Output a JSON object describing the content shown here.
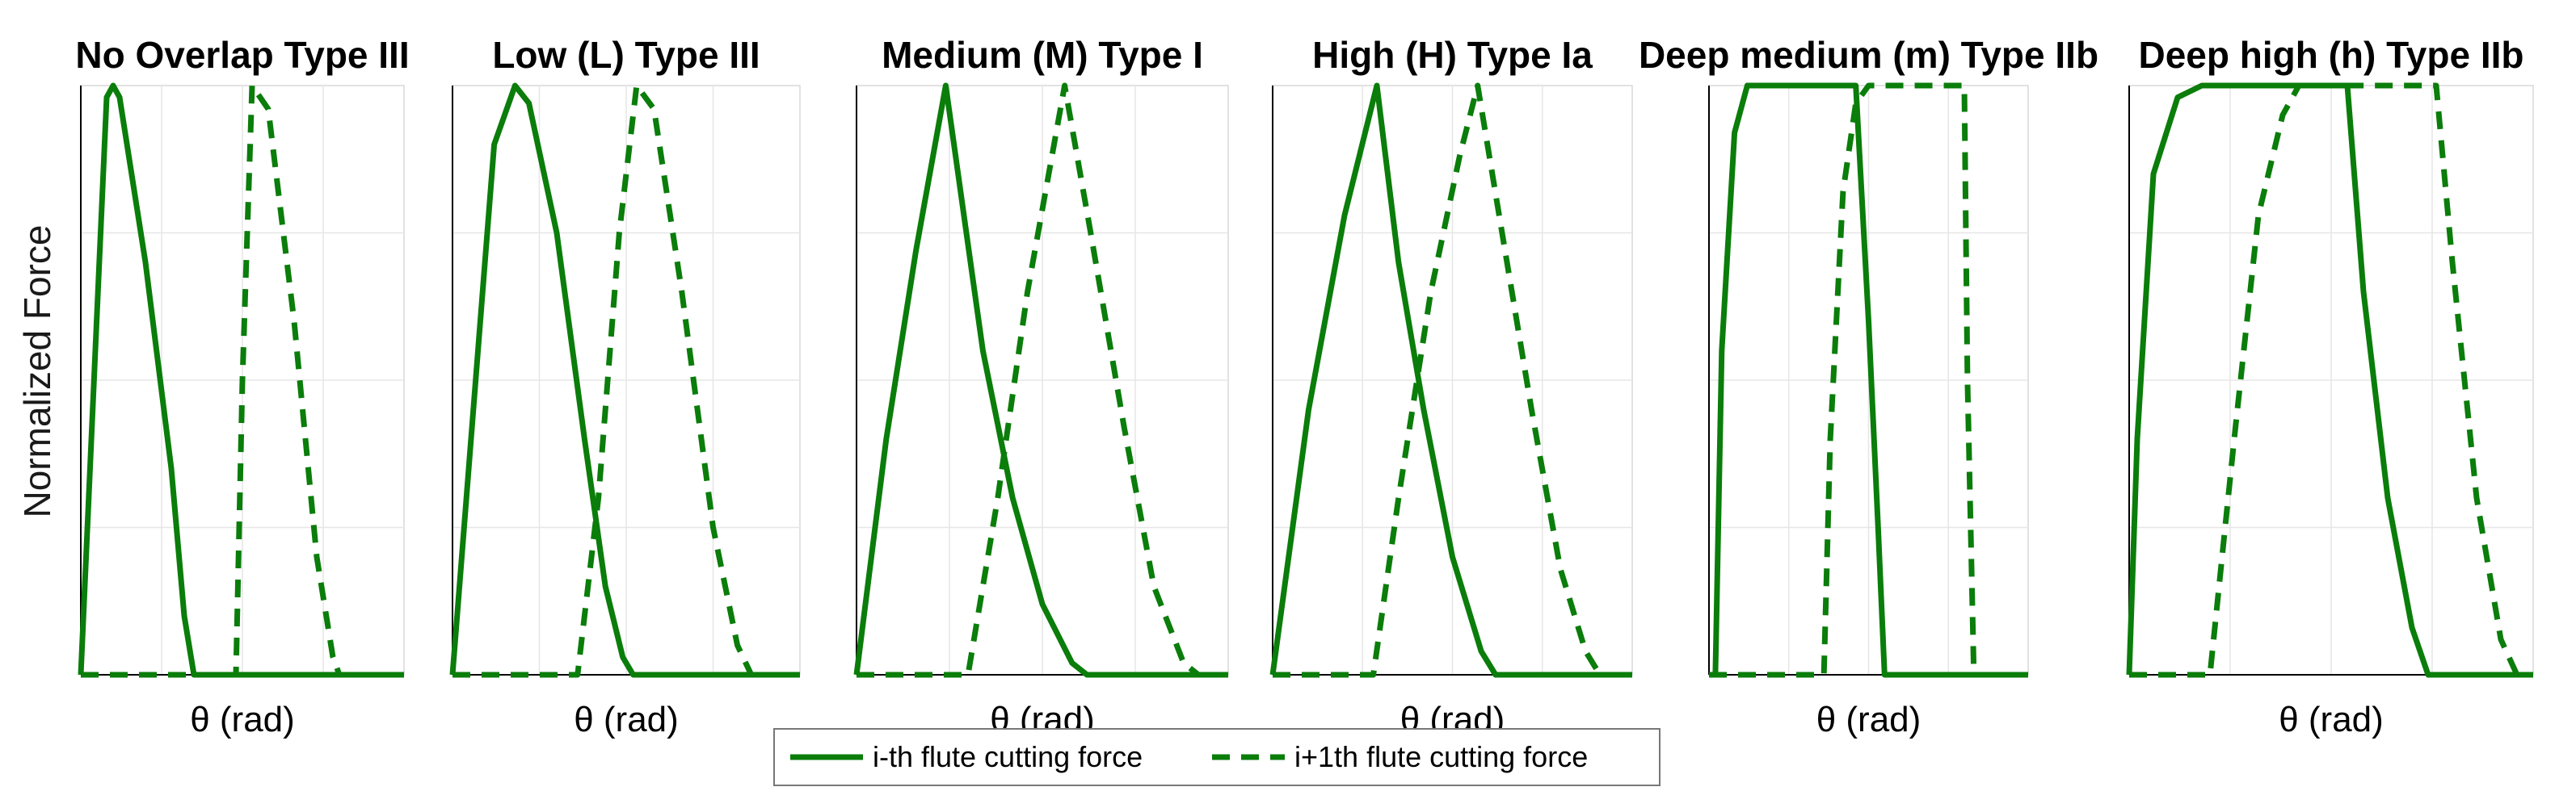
{
  "chart_data": {
    "type": "line",
    "ylabel": "Normalized Force",
    "xlabel": "θ (rad)",
    "ylim": [
      0,
      1
    ],
    "grid": true,
    "legend": {
      "placement": "bottom-center",
      "entries": [
        {
          "label": "i-th flute cutting force",
          "style": "solid"
        },
        {
          "label": "i+1th flute cutting force",
          "style": "dashed"
        }
      ]
    },
    "colors": {
      "line": "#0a7d0a",
      "grid": "#e6e6e6",
      "axis": "#000000"
    },
    "panels": [
      {
        "title": "No Overlap Type III",
        "series": [
          {
            "name": "i-th flute cutting force",
            "points": [
              [
                0,
                0
              ],
              [
                0.08,
                0.98
              ],
              [
                0.1,
                1.0
              ],
              [
                0.12,
                0.98
              ],
              [
                0.2,
                0.7
              ],
              [
                0.28,
                0.35
              ],
              [
                0.32,
                0.1
              ],
              [
                0.35,
                0
              ],
              [
                1,
                0
              ]
            ]
          },
          {
            "name": "i+1th flute cutting force",
            "points": [
              [
                0,
                0
              ],
              [
                0.48,
                0
              ],
              [
                0.5,
                0.5
              ],
              [
                0.53,
                1.0
              ],
              [
                0.58,
                0.96
              ],
              [
                0.66,
                0.6
              ],
              [
                0.73,
                0.2
              ],
              [
                0.78,
                0.03
              ],
              [
                0.8,
                0
              ],
              [
                1,
                0
              ]
            ]
          }
        ]
      },
      {
        "title": "Low (L) Type III",
        "series": [
          {
            "name": "i-th flute cutting force",
            "points": [
              [
                0,
                0
              ],
              [
                0.12,
                0.9
              ],
              [
                0.18,
                1.0
              ],
              [
                0.22,
                0.97
              ],
              [
                0.3,
                0.75
              ],
              [
                0.38,
                0.4
              ],
              [
                0.44,
                0.15
              ],
              [
                0.49,
                0.03
              ],
              [
                0.52,
                0
              ],
              [
                1,
                0
              ]
            ]
          },
          {
            "name": "i+1th flute cutting force",
            "points": [
              [
                0,
                0
              ],
              [
                0.36,
                0
              ],
              [
                0.42,
                0.3
              ],
              [
                0.48,
                0.75
              ],
              [
                0.53,
                1.0
              ],
              [
                0.58,
                0.96
              ],
              [
                0.66,
                0.65
              ],
              [
                0.75,
                0.25
              ],
              [
                0.82,
                0.05
              ],
              [
                0.86,
                0
              ],
              [
                1,
                0
              ]
            ]
          }
        ]
      },
      {
        "title": "Medium (M) Type I",
        "series": [
          {
            "name": "i-th flute cutting force",
            "points": [
              [
                0,
                0
              ],
              [
                0.08,
                0.4
              ],
              [
                0.16,
                0.72
              ],
              [
                0.24,
                1.0
              ],
              [
                0.28,
                0.82
              ],
              [
                0.34,
                0.55
              ],
              [
                0.42,
                0.3
              ],
              [
                0.5,
                0.12
              ],
              [
                0.58,
                0.02
              ],
              [
                0.62,
                0
              ],
              [
                1,
                0
              ]
            ]
          },
          {
            "name": "i+1th flute cutting force",
            "points": [
              [
                0,
                0
              ],
              [
                0.3,
                0
              ],
              [
                0.38,
                0.3
              ],
              [
                0.46,
                0.65
              ],
              [
                0.56,
                1.0
              ],
              [
                0.63,
                0.75
              ],
              [
                0.72,
                0.42
              ],
              [
                0.8,
                0.15
              ],
              [
                0.88,
                0.02
              ],
              [
                0.92,
                0
              ],
              [
                1,
                0
              ]
            ]
          }
        ]
      },
      {
        "title": "High (H) Type Ia",
        "series": [
          {
            "name": "i-th flute cutting force",
            "points": [
              [
                0,
                0
              ],
              [
                0.1,
                0.45
              ],
              [
                0.2,
                0.78
              ],
              [
                0.29,
                1.0
              ],
              [
                0.35,
                0.7
              ],
              [
                0.42,
                0.45
              ],
              [
                0.5,
                0.2
              ],
              [
                0.58,
                0.04
              ],
              [
                0.62,
                0
              ],
              [
                1,
                0
              ]
            ]
          },
          {
            "name": "i+1th flute cutting force",
            "points": [
              [
                0,
                0
              ],
              [
                0.28,
                0
              ],
              [
                0.35,
                0.3
              ],
              [
                0.44,
                0.65
              ],
              [
                0.52,
                0.88
              ],
              [
                0.57,
                1.0
              ],
              [
                0.63,
                0.78
              ],
              [
                0.72,
                0.45
              ],
              [
                0.8,
                0.18
              ],
              [
                0.87,
                0.04
              ],
              [
                0.91,
                0
              ],
              [
                1,
                0
              ]
            ]
          }
        ]
      },
      {
        "title": "Deep medium (m) Type IIb",
        "series": [
          {
            "name": "i-th flute cutting force",
            "points": [
              [
                0,
                0
              ],
              [
                0.02,
                0
              ],
              [
                0.04,
                0.55
              ],
              [
                0.08,
                0.92
              ],
              [
                0.12,
                1.0
              ],
              [
                0.46,
                1.0
              ],
              [
                0.5,
                0.6
              ],
              [
                0.53,
                0.25
              ],
              [
                0.55,
                0
              ],
              [
                1,
                0
              ]
            ]
          },
          {
            "name": "i+1th flute cutting force",
            "points": [
              [
                0,
                0
              ],
              [
                0.36,
                0
              ],
              [
                0.38,
                0.4
              ],
              [
                0.42,
                0.82
              ],
              [
                0.46,
                0.97
              ],
              [
                0.5,
                1.0
              ],
              [
                0.8,
                1.0
              ],
              [
                0.81,
                0.5
              ],
              [
                0.83,
                0
              ],
              [
                1,
                0
              ]
            ]
          }
        ]
      },
      {
        "title": "Deep high (h) Type IIb",
        "series": [
          {
            "name": "i-th flute cutting force",
            "points": [
              [
                0,
                0
              ],
              [
                0.02,
                0.4
              ],
              [
                0.06,
                0.85
              ],
              [
                0.12,
                0.98
              ],
              [
                0.18,
                1.0
              ],
              [
                0.54,
                1.0
              ],
              [
                0.58,
                0.65
              ],
              [
                0.64,
                0.3
              ],
              [
                0.7,
                0.08
              ],
              [
                0.74,
                0
              ],
              [
                1,
                0
              ]
            ]
          },
          {
            "name": "i+1th flute cutting force",
            "points": [
              [
                0,
                0
              ],
              [
                0.2,
                0
              ],
              [
                0.26,
                0.4
              ],
              [
                0.32,
                0.78
              ],
              [
                0.38,
                0.95
              ],
              [
                0.42,
                1.0
              ],
              [
                0.76,
                1.0
              ],
              [
                0.8,
                0.7
              ],
              [
                0.86,
                0.3
              ],
              [
                0.92,
                0.06
              ],
              [
                0.96,
                0
              ],
              [
                1,
                0
              ]
            ]
          }
        ]
      }
    ]
  }
}
